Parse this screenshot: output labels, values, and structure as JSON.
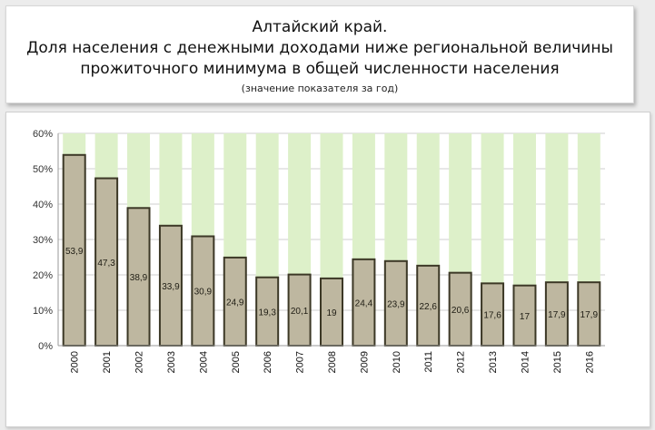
{
  "title": {
    "line1": "Алтайский край.",
    "line2": "Доля населения с денежными доходами ниже региональной величины",
    "line3": "прожиточного минимума в общей численности населения",
    "subtitle": "(значение показателя за год)"
  },
  "colors": {
    "bar_fill": "#beb7a0",
    "bar_stroke": "#3c3826",
    "background_bar": "#ddf0c9",
    "grid": "#cfcfcf",
    "axis": "#9a9a9a"
  },
  "chart_data": {
    "type": "bar",
    "title": "",
    "xlabel": "",
    "ylabel": "",
    "ylim": [
      0,
      60
    ],
    "yticks": [
      "0%",
      "10%",
      "20%",
      "30%",
      "40%",
      "50%",
      "60%"
    ],
    "categories": [
      "2000",
      "2001",
      "2002",
      "2003",
      "2004",
      "2005",
      "2006",
      "2007",
      "2008",
      "2009",
      "2010",
      "2011",
      "2012",
      "2013",
      "2014",
      "2015",
      "2016"
    ],
    "values": [
      53.9,
      47.3,
      38.9,
      33.9,
      30.9,
      24.9,
      19.3,
      20.1,
      19,
      24.4,
      23.9,
      22.6,
      20.6,
      17.6,
      17,
      17.9,
      17.9
    ],
    "data_labels": [
      "53,9",
      "47,3",
      "38,9",
      "33,9",
      "30,9",
      "24,9",
      "19,3",
      "20,1",
      "19",
      "24,4",
      "23,9",
      "22,6",
      "20,6",
      "17,6",
      "17",
      "17,9",
      "17,9"
    ],
    "background_value": 60,
    "grid": true,
    "legend": "none"
  }
}
